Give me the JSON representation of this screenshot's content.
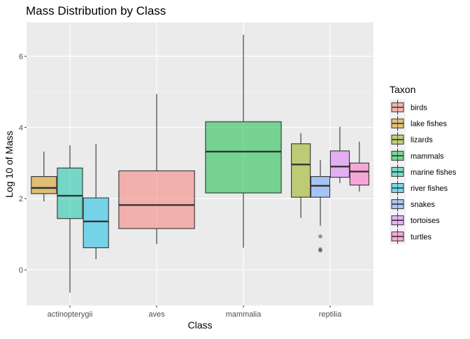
{
  "chart_data": {
    "type": "boxplot",
    "title": "Mass Distribution by Class",
    "xlabel": "Class",
    "ylabel": "Log 10 of Mass",
    "ylim": [
      -1.0,
      6.95
    ],
    "y_ticks": [
      0,
      2,
      4,
      6
    ],
    "y_tick_labels": [
      "0",
      "2",
      "4",
      "6"
    ],
    "categories": [
      "actinopterygii",
      "aves",
      "mammalia",
      "reptilia"
    ],
    "grid": true,
    "legend": {
      "title": "Taxon",
      "position": "right",
      "entries": [
        {
          "label": "birds",
          "color": "#F8766D"
        },
        {
          "label": "lake fishes",
          "color": "#D39200"
        },
        {
          "label": "lizards",
          "color": "#93AA00"
        },
        {
          "label": "mammals",
          "color": "#00BA38"
        },
        {
          "label": "marine fishes",
          "color": "#00C19F"
        },
        {
          "label": "river fishes",
          "color": "#00B9E3"
        },
        {
          "label": "snakes",
          "color": "#619CFF"
        },
        {
          "label": "tortoises",
          "color": "#DB72FB"
        },
        {
          "label": "turtles",
          "color": "#FF61C3"
        }
      ]
    },
    "series": [
      {
        "taxon": "lake fishes",
        "class": "actinopterygii",
        "slot": 0,
        "slots": 3,
        "min": 1.92,
        "q1": 2.14,
        "median": 2.3,
        "q3": 2.62,
        "max": 3.32,
        "outliers": []
      },
      {
        "taxon": "marine fishes",
        "class": "actinopterygii",
        "slot": 1,
        "slots": 3,
        "min": -0.64,
        "q1": 1.44,
        "median": 2.08,
        "q3": 2.86,
        "max": 3.5,
        "outliers": []
      },
      {
        "taxon": "river fishes",
        "class": "actinopterygii",
        "slot": 2,
        "slots": 3,
        "min": 0.3,
        "q1": 0.62,
        "median": 1.36,
        "q3": 2.02,
        "max": 3.54,
        "outliers": []
      },
      {
        "taxon": "birds",
        "class": "aves",
        "slot": 0,
        "slots": 1,
        "min": 0.72,
        "q1": 1.16,
        "median": 1.82,
        "q3": 2.78,
        "max": 4.94,
        "outliers": []
      },
      {
        "taxon": "mammals",
        "class": "mammalia",
        "slot": 0,
        "slots": 1,
        "min": 0.62,
        "q1": 2.16,
        "median": 3.32,
        "q3": 4.16,
        "max": 6.6,
        "outliers": []
      },
      {
        "taxon": "lizards",
        "class": "reptilia",
        "slot": 0,
        "slots": 4,
        "min": 1.46,
        "q1": 2.04,
        "median": 2.96,
        "q3": 3.54,
        "max": 3.84,
        "outliers": []
      },
      {
        "taxon": "snakes",
        "class": "reptilia",
        "slot": 1,
        "slots": 4,
        "min": 1.24,
        "q1": 2.04,
        "median": 2.36,
        "q3": 2.62,
        "max": 3.08,
        "outliers": [
          0.94,
          0.58,
          0.54
        ]
      },
      {
        "taxon": "tortoises",
        "class": "reptilia",
        "slot": 2,
        "slots": 4,
        "min": 2.44,
        "q1": 2.6,
        "median": 2.9,
        "q3": 3.34,
        "max": 4.02,
        "outliers": []
      },
      {
        "taxon": "turtles",
        "class": "reptilia",
        "slot": 3,
        "slots": 4,
        "min": 2.2,
        "q1": 2.38,
        "median": 2.76,
        "q3": 3.0,
        "max": 3.6,
        "outliers": []
      }
    ]
  }
}
